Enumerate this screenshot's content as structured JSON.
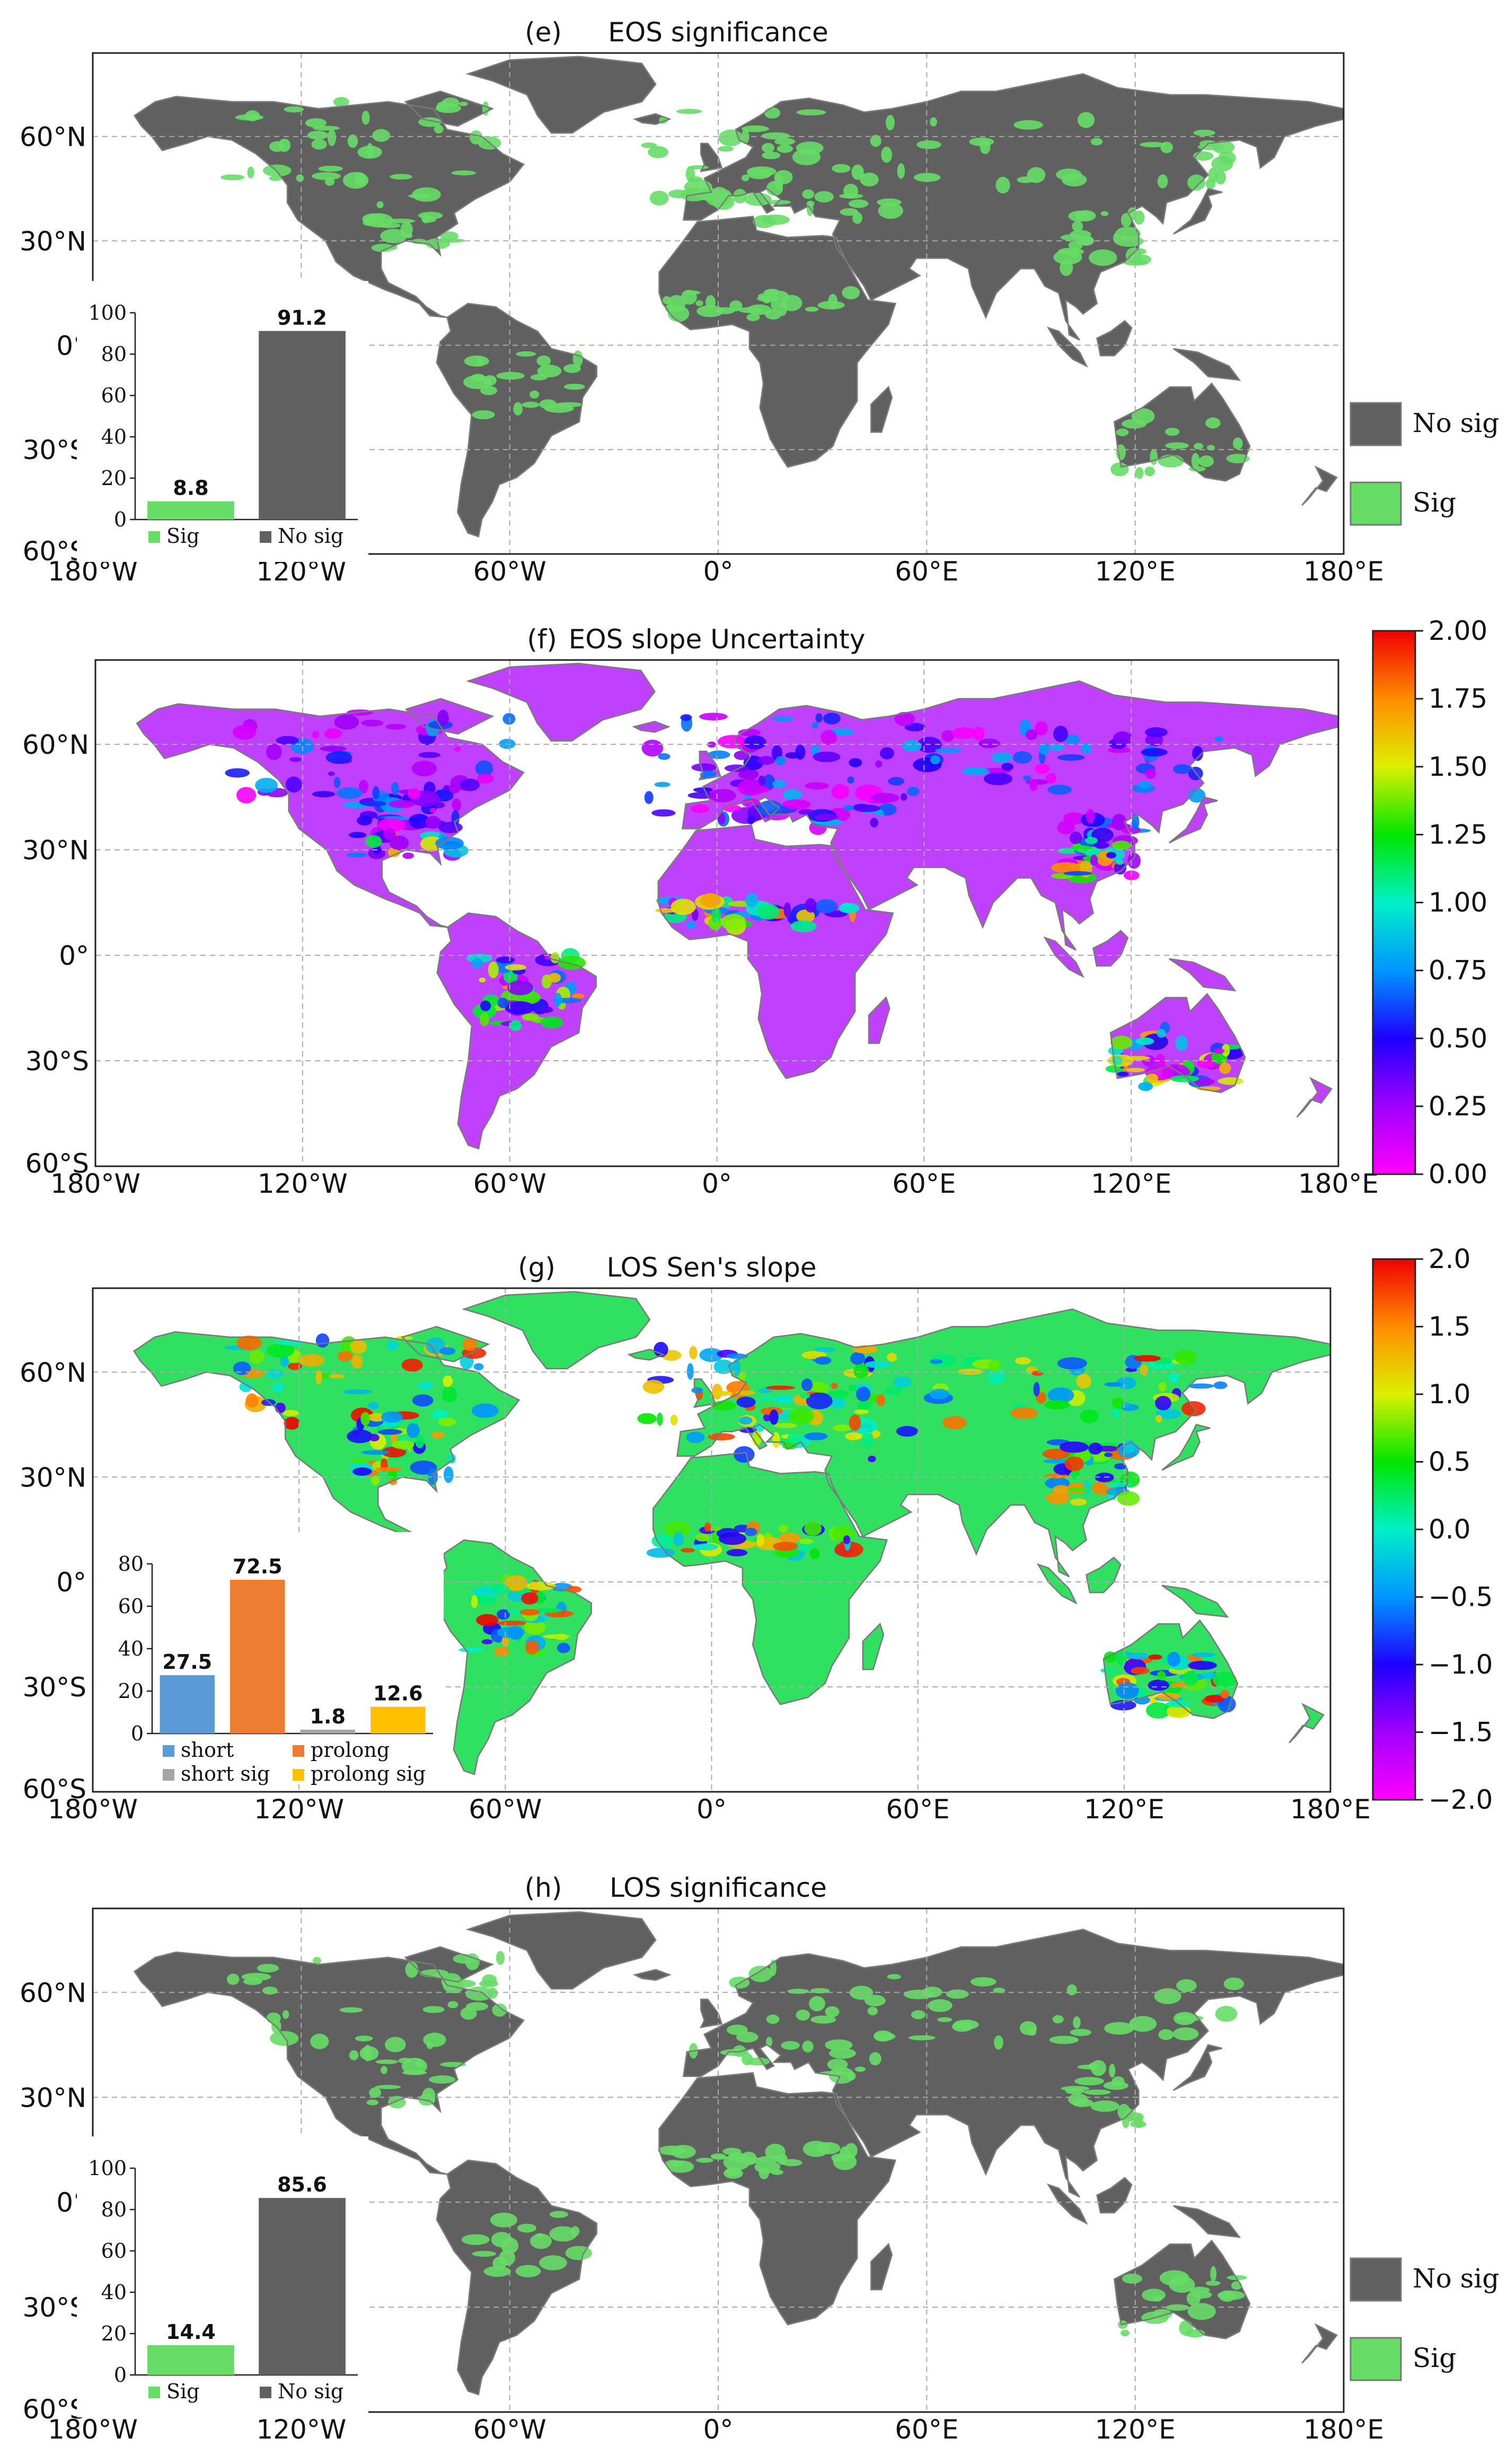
{
  "chart_data": [
    {
      "type": "map",
      "panel": "(e)",
      "title": "EOS significance",
      "lat_ticks": [
        "60°N",
        "30°N",
        "0°",
        "30°S",
        "60°S"
      ],
      "lon_ticks": [
        "180°W",
        "120°W",
        "60°W",
        "0°",
        "60°E",
        "120°E",
        "180°E"
      ],
      "legend": [
        {
          "label": "No sig",
          "color": "#606060"
        },
        {
          "label": "Sig",
          "color": "#66dd66"
        }
      ],
      "inset": {
        "type": "bar",
        "ylim": [
          0,
          100
        ],
        "yticks": [
          "0",
          "20",
          "40",
          "60",
          "80",
          "100"
        ],
        "categories": [
          "Sig",
          "No sig"
        ],
        "values": [
          8.8,
          91.2
        ],
        "value_labels": [
          "8.8",
          "91.2"
        ],
        "colors": [
          "#66dd66",
          "#606060"
        ]
      }
    },
    {
      "type": "map",
      "panel": "(f)",
      "title": "EOS slope Uncertainty",
      "lat_ticks": [
        "60°N",
        "30°N",
        "0°",
        "30°S",
        "60°S"
      ],
      "lon_ticks": [
        "180°W",
        "120°W",
        "60°W",
        "0°",
        "60°E",
        "120°E",
        "180°E"
      ],
      "colorbar": {
        "ticks": [
          "2.00",
          "1.75",
          "1.50",
          "1.25",
          "1.00",
          "0.75",
          "0.50",
          "0.25",
          "0.00"
        ],
        "range": [
          0,
          2
        ]
      }
    },
    {
      "type": "map",
      "panel": "(g)",
      "title": "LOS  Sen's slope",
      "lat_ticks": [
        "60°N",
        "30°N",
        "0°",
        "30°S",
        "60°S"
      ],
      "lon_ticks": [
        "180°W",
        "120°W",
        "60°W",
        "0°",
        "60°E",
        "120°E",
        "180°E"
      ],
      "colorbar": {
        "ticks": [
          "2.0",
          "1.5",
          "1.0",
          "0.5",
          "0.0",
          "−0.5",
          "−1.0",
          "−1.5",
          "−2.0"
        ],
        "range": [
          -2,
          2
        ]
      },
      "inset": {
        "type": "bar",
        "ylim": [
          0,
          80
        ],
        "yticks": [
          "0",
          "20",
          "40",
          "60",
          "80"
        ],
        "categories": [
          "short",
          "prolong",
          "short sig",
          "prolong sig"
        ],
        "values": [
          27.5,
          72.5,
          1.8,
          12.6
        ],
        "value_labels": [
          "27.5",
          "72.5",
          "1.8",
          "12.6"
        ],
        "colors": [
          "#5b9bd5",
          "#ed7d31",
          "#a5a5a5",
          "#ffc000"
        ],
        "legend": [
          "short",
          "prolong",
          "short sig",
          "prolong sig"
        ]
      }
    },
    {
      "type": "map",
      "panel": "(h)",
      "title": "LOS significance",
      "lat_ticks": [
        "60°N",
        "30°N",
        "0°",
        "30°S",
        "60°S"
      ],
      "lon_ticks": [
        "180°W",
        "120°W",
        "60°W",
        "0°",
        "60°E",
        "120°E",
        "180°E"
      ],
      "legend": [
        {
          "label": "No sig",
          "color": "#606060"
        },
        {
          "label": "Sig",
          "color": "#66dd66"
        }
      ],
      "inset": {
        "type": "bar",
        "ylim": [
          0,
          100
        ],
        "yticks": [
          "0",
          "20",
          "40",
          "60",
          "80",
          "100"
        ],
        "categories": [
          "Sig",
          "No sig"
        ],
        "values": [
          14.4,
          85.6
        ],
        "value_labels": [
          "14.4",
          "85.6"
        ],
        "colors": [
          "#66dd66",
          "#606060"
        ]
      }
    }
  ]
}
